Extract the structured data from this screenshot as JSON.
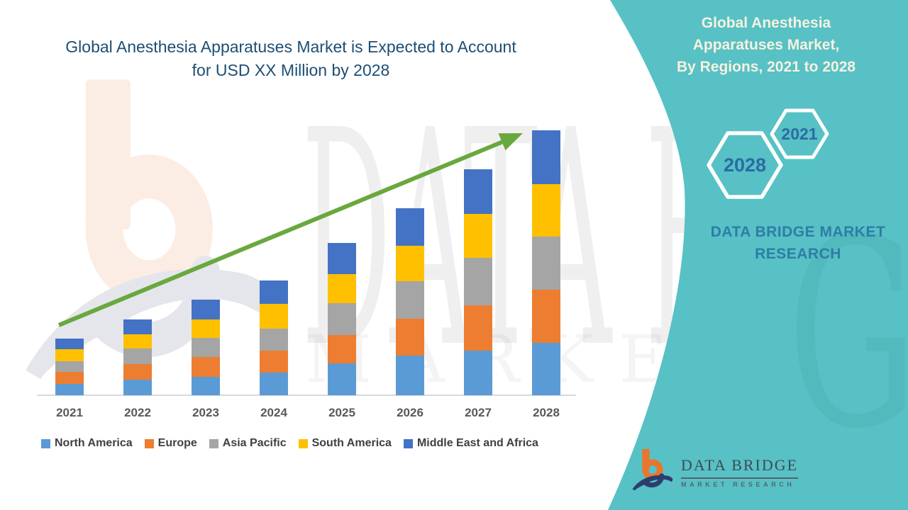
{
  "colors": {
    "teal": "#57c1c5",
    "title": "#1d4e73",
    "panel-text": "#f7f1df",
    "dbmr": "#2e7da6",
    "hex-text": "#2a6ca4",
    "axis": "#d9d9d9",
    "xlabel": "#595959",
    "legend": "#3f3f3f",
    "arrow": "#69a83e",
    "logo-orange": "#e8762c",
    "logo-navy": "#2c3e6b",
    "logo-text": "#3f4a56"
  },
  "header": {
    "title_line1": "Global Anesthesia Apparatuses Market is Expected to Account",
    "title_line2": "for USD XX Million by 2028"
  },
  "chart_data": {
    "type": "bar",
    "stacked": true,
    "title": "Global Anesthesia Apparatuses Market is Expected to Account for USD XX Million by 2028",
    "xlabel": "",
    "ylabel": "",
    "value_note": "No numeric y-axis shown (values are USD XX Million); series values below are relative stacked-segment heights read from the image (px).",
    "categories": [
      "2021",
      "2022",
      "2023",
      "2024",
      "2025",
      "2026",
      "2027",
      "2028"
    ],
    "series": [
      {
        "name": "North America",
        "color": "#5B9BD5",
        "values": [
          16,
          22,
          26,
          32,
          45,
          56,
          63,
          74
        ]
      },
      {
        "name": "Europe",
        "color": "#ED7D31",
        "values": [
          17,
          22,
          28,
          31,
          40,
          52,
          64,
          75
        ]
      },
      {
        "name": "Asia Pacific",
        "color": "#A5A5A5",
        "values": [
          15,
          22,
          27,
          31,
          45,
          53,
          67,
          75
        ]
      },
      {
        "name": "South America",
        "color": "#FFC000",
        "values": [
          17,
          20,
          26,
          35,
          41,
          50,
          62,
          74
        ]
      },
      {
        "name": "Middle East and Africa",
        "color": "#4472C4",
        "values": [
          15,
          21,
          28,
          33,
          44,
          53,
          63,
          76
        ]
      }
    ],
    "totals": [
      80,
      107,
      135,
      162,
      215,
      268,
      319,
      374
    ],
    "ylim": [
      0,
      400
    ],
    "grid": false,
    "legend_position": "bottom",
    "trend_arrow": {
      "present": true,
      "direction": "up-right",
      "color": "#69a83e"
    }
  },
  "side_panel": {
    "title_line1": "Global Anesthesia",
    "title_line2": "Apparatuses Market,",
    "title_line3": "By Regions,  2021 to 2028",
    "hexagons": [
      {
        "label": "2028"
      },
      {
        "label": "2021"
      }
    ],
    "brand_line1": "DATA BRIDGE MARKET",
    "brand_line2": "RESEARCH"
  },
  "footer_logo": {
    "name": "DATA BRIDGE",
    "tagline": "MARKET RESEARCH"
  },
  "watermark": {
    "big_text": "DATA BRIDGE",
    "sub_text": "MARKET RESEARCH",
    "side_text": "GE"
  }
}
